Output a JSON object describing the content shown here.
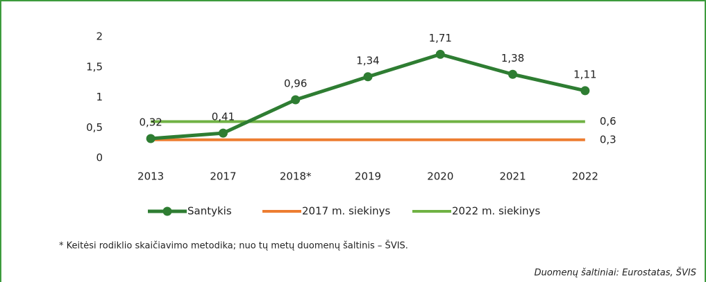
{
  "chart_data": {
    "type": "line",
    "categories": [
      "2013",
      "2017",
      "2018*",
      "2019",
      "2020",
      "2021",
      "2022"
    ],
    "series": [
      {
        "name": "Santykis",
        "color": "#2e7d32",
        "values": [
          0.32,
          0.41,
          0.96,
          1.34,
          1.71,
          1.38,
          1.11
        ],
        "value_labels": [
          "0,32",
          "0,41",
          "0,96",
          "1,34",
          "1,71",
          "1,38",
          "1,11"
        ],
        "markers": true
      },
      {
        "name": "2017 m. siekinys",
        "color": "#ed7d31",
        "values": [
          0.3,
          0.3,
          0.3,
          0.3,
          0.3,
          0.3,
          0.3
        ],
        "end_label": "0,3"
      },
      {
        "name": "2022 m. siekinys",
        "color": "#70b244",
        "values": [
          0.6,
          0.6,
          0.6,
          0.6,
          0.6,
          0.6,
          0.6
        ],
        "end_label": "0,6"
      }
    ],
    "ylim": [
      0,
      2
    ],
    "yticks": [
      0,
      {
        "value": 0.5,
        "label": "0,5"
      },
      1,
      {
        "value": 1.5,
        "label": "1,5"
      },
      2
    ],
    "legend": "bottom",
    "footnote": "* Keitėsi rodiklio skaičiavimo metodika; nuo tų metų duomenų šaltinis – ŠVIS.",
    "source": "Duomenų šaltiniai: Eurostatas, ŠVIS"
  }
}
